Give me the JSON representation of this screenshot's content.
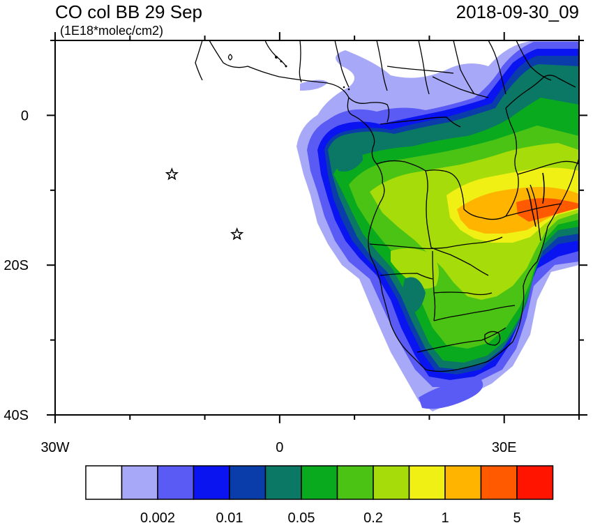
{
  "title": "CO col BB 29 Sep",
  "units": "(1E18*molec/cm2)",
  "timestamp": "2018-09-30_09",
  "axes": {
    "lat_ticks": [
      {
        "value": 0,
        "label": "0"
      },
      {
        "value": -20,
        "label": "20S"
      },
      {
        "value": -40,
        "label": "40S"
      }
    ],
    "lon_ticks": [
      {
        "value": -30,
        "label": "30W"
      },
      {
        "value": 0,
        "label": "0"
      },
      {
        "value": 30,
        "label": "30E"
      }
    ],
    "lon_range": [
      -30,
      40
    ],
    "lat_range": [
      -40,
      10
    ]
  },
  "markers": [
    {
      "name": "star-marker-1",
      "lon": -14.4,
      "lat": -7.9
    },
    {
      "name": "star-marker-2",
      "lon": -5.7,
      "lat": -15.9
    }
  ],
  "colorbar": {
    "colors": [
      "#ffffff",
      "#a8a8f8",
      "#5a5af5",
      "#0a14f0",
      "#0a3caa",
      "#0a7864",
      "#0aaa1e",
      "#4bc314",
      "#a5dc0a",
      "#f0f014",
      "#ffb400",
      "#ff5a00",
      "#ff1400"
    ],
    "labels": [
      {
        "after_box": 2,
        "text": "0.002"
      },
      {
        "after_box": 4,
        "text": "0.01"
      },
      {
        "after_box": 6,
        "text": "0.05"
      },
      {
        "after_box": 8,
        "text": "0.2"
      },
      {
        "after_box": 10,
        "text": "1"
      },
      {
        "after_box": 12,
        "text": "5"
      }
    ]
  }
}
